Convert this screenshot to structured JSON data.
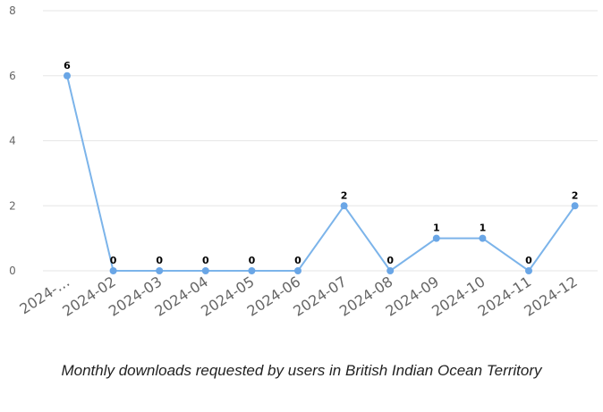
{
  "chart_data": {
    "type": "line",
    "categories": [
      "2024-…",
      "2024-02",
      "2024-03",
      "2024-04",
      "2024-05",
      "2024-06",
      "2024-07",
      "2024-08",
      "2024-09",
      "2024-10",
      "2024-11",
      "2024-12"
    ],
    "values": [
      6,
      0,
      0,
      0,
      0,
      0,
      2,
      0,
      1,
      1,
      0,
      2
    ],
    "yticks": [
      0,
      2,
      4,
      6,
      8
    ],
    "ylim": [
      0,
      8
    ],
    "grid": true,
    "data_labels": true,
    "line_color": "#7cb4ea",
    "point_color": "#6aa6e6",
    "grid_color": "#e6e6e6"
  },
  "caption": "Monthly downloads requested by users in British Indian Ocean Territory"
}
